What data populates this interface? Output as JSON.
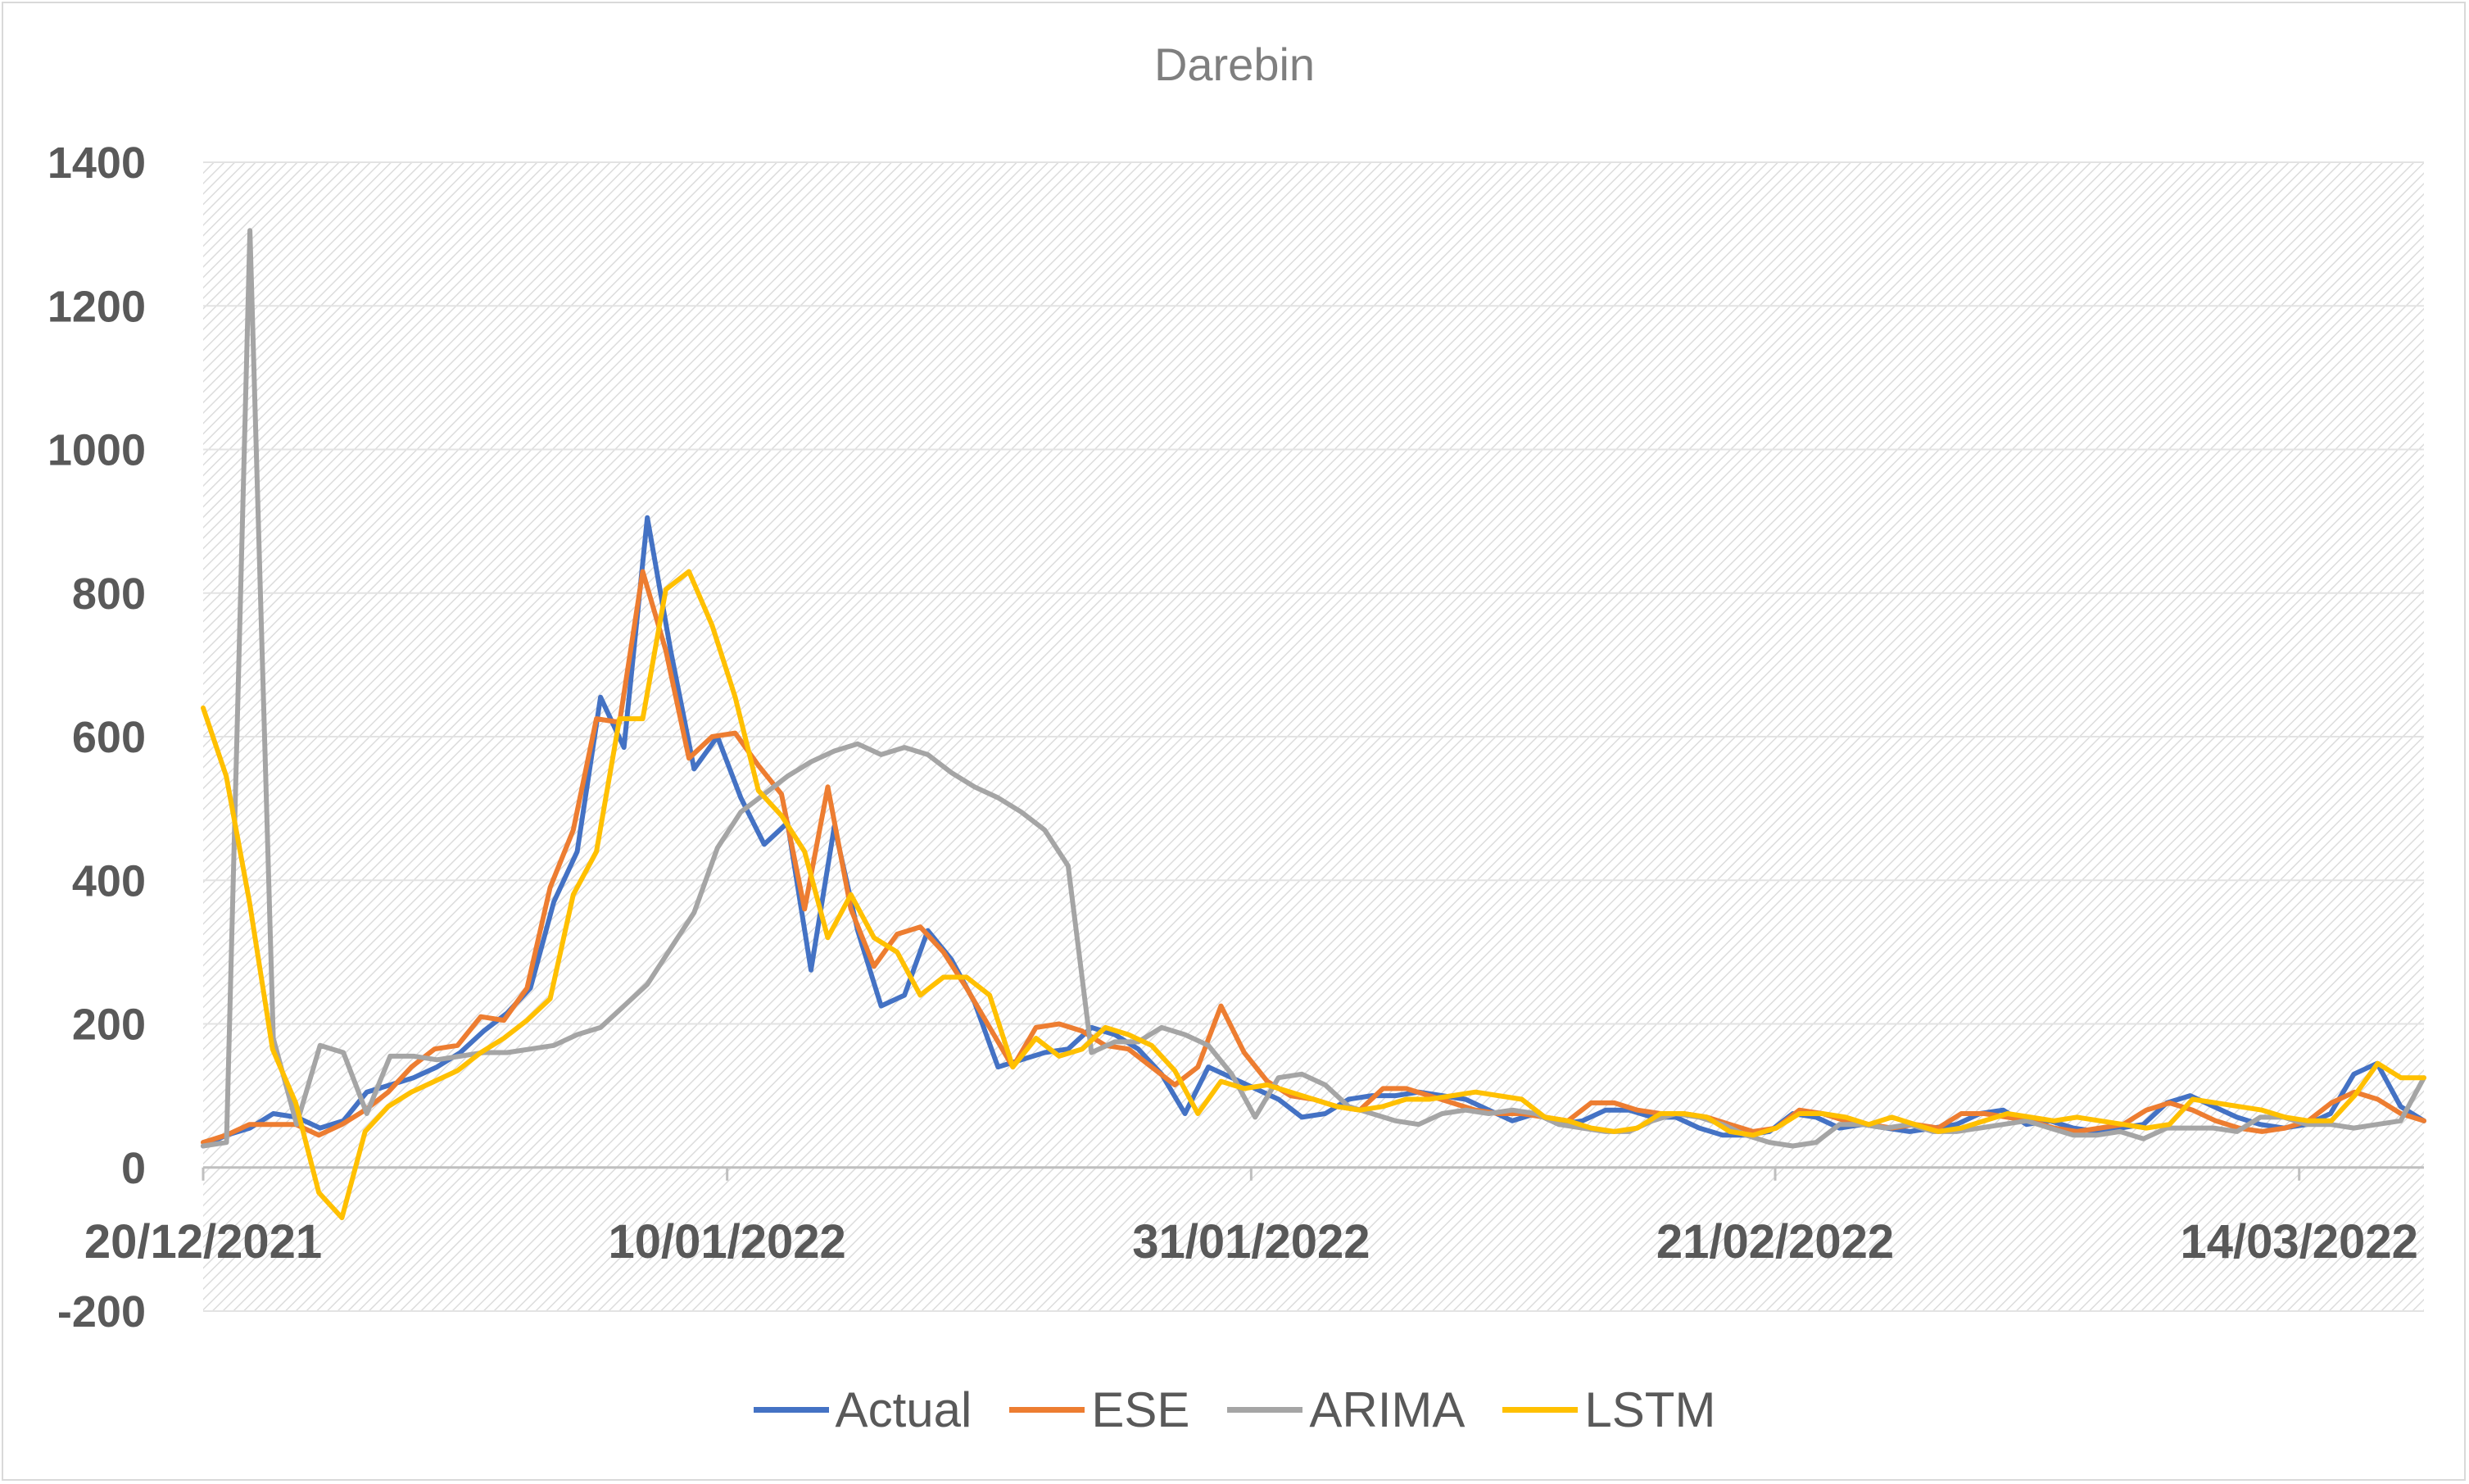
{
  "chart_data": {
    "type": "line",
    "title": "Darebin",
    "xlabel": "",
    "ylabel": "",
    "ylim": [
      -200,
      1400
    ],
    "yticks": [
      "1400",
      "1200",
      "1000",
      "800",
      "600",
      "400",
      "200",
      "0",
      "-200"
    ],
    "ytick_values": [
      1400,
      1200,
      1000,
      800,
      600,
      400,
      200,
      0,
      -200
    ],
    "xtick_labels": [
      "20/12/2021",
      "10/01/2022",
      "31/01/2022",
      "21/02/2022",
      "14/03/2022"
    ],
    "x_start": "20/12/2021",
    "x_end": "19/03/2022",
    "grid": true,
    "legend_position": "bottom",
    "series": [
      {
        "name": "Actual",
        "color": "#4472C4",
        "values": [
          30,
          45,
          55,
          75,
          70,
          55,
          65,
          105,
          115,
          125,
          140,
          160,
          190,
          215,
          250,
          370,
          440,
          655,
          585,
          905,
          720,
          555,
          600,
          515,
          450,
          480,
          275,
          475,
          330,
          225,
          240,
          330,
          290,
          230,
          140,
          150,
          160,
          165,
          195,
          185,
          165,
          130,
          75,
          140,
          125,
          110,
          95,
          70,
          75,
          95,
          100,
          100,
          105,
          100,
          95,
          80,
          65,
          75,
          60,
          65,
          80,
          80,
          70,
          70,
          55,
          45,
          45,
          50,
          75,
          70,
          55,
          60,
          55,
          50,
          55,
          60,
          75,
          80,
          60,
          65,
          55,
          50,
          55,
          60,
          90,
          100,
          85,
          70,
          60,
          55,
          60,
          75,
          130,
          145,
          85,
          65
        ]
      },
      {
        "name": "ESE",
        "color": "#ED7D31",
        "values": [
          35,
          45,
          60,
          60,
          60,
          45,
          60,
          80,
          105,
          140,
          165,
          170,
          210,
          205,
          250,
          390,
          470,
          625,
          620,
          830,
          720,
          570,
          600,
          605,
          560,
          520,
          360,
          530,
          360,
          280,
          325,
          335,
          300,
          250,
          195,
          140,
          195,
          200,
          190,
          170,
          165,
          140,
          115,
          140,
          225,
          160,
          120,
          100,
          95,
          85,
          80,
          110,
          110,
          100,
          90,
          80,
          75,
          75,
          70,
          65,
          90,
          90,
          80,
          75,
          75,
          70,
          60,
          50,
          55,
          80,
          75,
          65,
          60,
          55,
          60,
          55,
          75,
          75,
          70,
          65,
          55,
          50,
          55,
          60,
          80,
          90,
          80,
          65,
          55,
          50,
          55,
          65,
          90,
          105,
          95,
          75,
          65
        ]
      },
      {
        "name": "ARIMA",
        "color": "#A5A5A5",
        "values": [
          30,
          35,
          1305,
          180,
          60,
          170,
          160,
          75,
          155,
          155,
          150,
          155,
          160,
          160,
          165,
          170,
          185,
          195,
          225,
          255,
          305,
          355,
          445,
          495,
          520,
          545,
          565,
          580,
          590,
          575,
          585,
          575,
          550,
          530,
          515,
          495,
          470,
          420,
          160,
          175,
          175,
          195,
          185,
          170,
          130,
          70,
          125,
          130,
          115,
          85,
          75,
          65,
          60,
          75,
          80,
          75,
          80,
          75,
          60,
          55,
          50,
          50,
          65,
          75,
          70,
          60,
          45,
          35,
          30,
          35,
          60,
          60,
          55,
          60,
          50,
          50,
          55,
          60,
          65,
          55,
          45,
          45,
          50,
          40,
          55,
          55,
          55,
          50,
          70,
          70,
          60,
          60,
          55,
          60,
          65,
          125
        ]
      },
      {
        "name": "LSTM",
        "color": "#FFC000",
        "values": [
          640,
          545,
          370,
          165,
          90,
          -35,
          -70,
          50,
          85,
          105,
          120,
          135,
          160,
          180,
          205,
          235,
          380,
          440,
          625,
          625,
          805,
          830,
          755,
          655,
          525,
          490,
          440,
          320,
          380,
          320,
          300,
          240,
          265,
          265,
          240,
          140,
          180,
          155,
          165,
          195,
          185,
          170,
          135,
          75,
          120,
          110,
          115,
          105,
          95,
          85,
          80,
          85,
          95,
          95,
          100,
          105,
          100,
          95,
          70,
          65,
          55,
          50,
          55,
          75,
          75,
          70,
          50,
          45,
          55,
          75,
          75,
          70,
          60,
          70,
          60,
          50,
          55,
          65,
          75,
          70,
          65,
          70,
          65,
          60,
          55,
          60,
          95,
          90,
          85,
          80,
          70,
          65,
          65,
          100,
          145,
          125,
          125
        ]
      }
    ]
  },
  "legend": {
    "actual": "Actual",
    "ese": "ESE",
    "arima": "ARIMA",
    "lstm": "LSTM"
  }
}
